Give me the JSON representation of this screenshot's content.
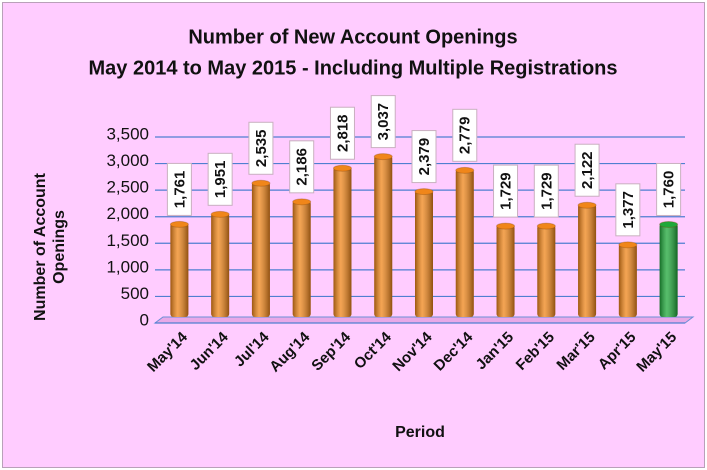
{
  "chart_data": {
    "type": "bar",
    "title": "Number of New Account Openings",
    "subtitle": "May 2014 to May 2015 - Including Multiple Registrations",
    "x_label": "Period",
    "y_label": "Number of Account Openings",
    "categories": [
      "May'14",
      "Jun'14",
      "Jul'14",
      "Aug'14",
      "Sep'14",
      "Oct'14",
      "Nov'14",
      "Dec'14",
      "Jan'15",
      "Feb'15",
      "Mar'15",
      "Apr'15",
      "May'15"
    ],
    "values": [
      1761,
      1951,
      2535,
      2186,
      2818,
      3037,
      2379,
      2779,
      1729,
      1729,
      2122,
      1377,
      1760
    ],
    "value_labels": [
      "1,761",
      "1,951",
      "2,535",
      "2,186",
      "2,818",
      "3,037",
      "2,379",
      "2,779",
      "1,729",
      "1,729",
      "2,122",
      "1,377",
      "1,760"
    ],
    "colors": [
      "#f0861a",
      "#f0861a",
      "#f0861a",
      "#f0861a",
      "#f0861a",
      "#f0861a",
      "#f0861a",
      "#f0861a",
      "#f0861a",
      "#f0861a",
      "#f0861a",
      "#f0861a",
      "#1fa83a"
    ],
    "ylim": [
      0,
      3500
    ],
    "yticks": [
      0,
      500,
      {
        "value": 1000,
        "label": "1,000"
      },
      {
        "value": 1500,
        "label": "1,500"
      },
      {
        "value": 2000,
        "label": "2,000"
      },
      {
        "value": 2500,
        "label": "2,500"
      },
      {
        "value": 3000,
        "label": "3,000"
      },
      {
        "value": 3500,
        "label": "3,500"
      }
    ],
    "grid": true
  }
}
